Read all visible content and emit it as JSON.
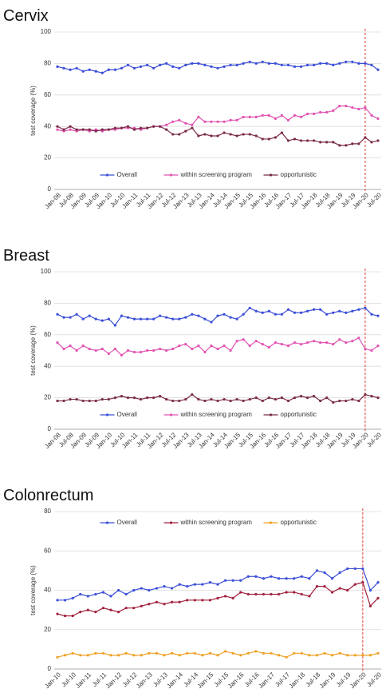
{
  "chart_data": [
    {
      "type": "line",
      "title": "Cervix",
      "y_label": "test coverage (%)",
      "categories": [
        "Jan-08",
        null,
        "Jul-08",
        null,
        "Jan-09",
        null,
        "Jul-09",
        null,
        "Jan-10",
        null,
        "Jul-10",
        null,
        "Jan-11",
        null,
        "Jul-11",
        null,
        "Jan-12",
        null,
        "Jul-12",
        null,
        "Jan-13",
        null,
        "Jul-13",
        null,
        "Jan-14",
        null,
        "Jul-14",
        null,
        "Jan-15",
        null,
        "Jul-15",
        null,
        "Jan-16",
        null,
        "Jul-16",
        null,
        "Jan-17",
        null,
        "Jul-17",
        null,
        "Jan-18",
        null,
        "Jul-18",
        null,
        "Jan-19",
        null,
        "Jul-19",
        null,
        "Jan-20",
        null,
        "Jul-20"
      ],
      "ylim": [
        0,
        100
      ],
      "yticks": [
        0,
        20,
        40,
        60,
        80,
        100
      ],
      "grid": true,
      "legend": "bottom",
      "vline": {
        "at": "Jan-20",
        "color": "#e03a3a"
      },
      "series": [
        {
          "name": "Overall",
          "color": "#3b4fd8",
          "values": [
            78,
            77,
            76,
            77,
            75,
            76,
            75,
            74,
            76,
            76,
            77,
            79,
            77,
            78,
            79,
            77,
            79,
            80,
            78,
            77,
            79,
            80,
            80,
            79,
            78,
            77,
            78,
            79,
            79,
            80,
            81,
            80,
            81,
            80,
            80,
            79,
            79,
            78,
            78,
            79,
            79,
            80,
            80,
            79,
            80,
            81,
            81,
            80,
            80,
            79,
            76
          ]
        },
        {
          "name": "within screening program",
          "color": "#e254b2",
          "values": [
            38,
            37,
            38,
            37,
            38,
            37,
            38,
            37,
            38,
            38,
            39,
            39,
            39,
            38,
            39,
            40,
            40,
            41,
            43,
            44,
            42,
            41,
            46,
            43,
            43,
            43,
            43,
            44,
            44,
            46,
            46,
            46,
            47,
            47,
            45,
            47,
            44,
            47,
            46,
            48,
            48,
            49,
            49,
            50,
            53,
            53,
            52,
            51,
            52,
            47,
            45
          ]
        },
        {
          "name": "opportunistic",
          "color": "#7a2a48",
          "values": [
            40,
            38,
            40,
            38,
            38,
            38,
            37,
            38,
            38,
            39,
            39,
            40,
            38,
            39,
            39,
            40,
            40,
            38,
            35,
            35,
            37,
            39,
            34,
            35,
            34,
            34,
            36,
            35,
            34,
            35,
            35,
            34,
            32,
            32,
            33,
            36,
            31,
            32,
            31,
            31,
            31,
            30,
            30,
            30,
            28,
            28,
            29,
            29,
            33,
            30,
            31
          ]
        }
      ]
    },
    {
      "type": "line",
      "title": "Breast",
      "y_label": "test coverage (%)",
      "categories": [
        "Jan-08",
        null,
        "Jul-08",
        null,
        "Jan-09",
        null,
        "Jul-09",
        null,
        "Jan-10",
        null,
        "Jul-10",
        null,
        "Jan-11",
        null,
        "Jul-11",
        null,
        "Jan-12",
        null,
        "Jul-12",
        null,
        "Jan-13",
        null,
        "Jul-13",
        null,
        "Jan-14",
        null,
        "Jul-14",
        null,
        "Jan-15",
        null,
        "Jul-15",
        null,
        "Jan-16",
        null,
        "Jul-16",
        null,
        "Jan-17",
        null,
        "Jul-17",
        null,
        "Jan-18",
        null,
        "Jul-18",
        null,
        "Jan-19",
        null,
        "Jul-19",
        null,
        "Jan-20",
        null,
        "Jul-20"
      ],
      "ylim": [
        0,
        100
      ],
      "yticks": [
        0,
        20,
        40,
        60,
        80,
        100
      ],
      "grid": true,
      "legend": "bottom",
      "vline": {
        "at": "Jan-20",
        "color": "#e03a3a"
      },
      "series": [
        {
          "name": "Overall",
          "color": "#3b4fd8",
          "values": [
            73,
            71,
            71,
            73,
            70,
            72,
            70,
            69,
            70,
            66,
            72,
            71,
            70,
            70,
            70,
            70,
            72,
            71,
            70,
            70,
            71,
            73,
            72,
            70,
            68,
            72,
            73,
            71,
            70,
            73,
            77,
            75,
            74,
            75,
            73,
            73,
            76,
            74,
            74,
            75,
            76,
            76,
            73,
            74,
            75,
            74,
            75,
            76,
            77,
            73,
            72
          ]
        },
        {
          "name": "within screening program",
          "color": "#e254b2",
          "values": [
            55,
            51,
            53,
            50,
            53,
            51,
            50,
            51,
            48,
            51,
            47,
            50,
            49,
            49,
            50,
            50,
            51,
            50,
            51,
            53,
            54,
            51,
            53,
            49,
            53,
            51,
            53,
            50,
            56,
            57,
            53,
            56,
            54,
            52,
            55,
            54,
            53,
            55,
            54,
            55,
            56,
            55,
            55,
            54,
            57,
            55,
            56,
            58,
            51,
            50,
            53
          ]
        },
        {
          "name": "opportunistic",
          "color": "#7a2a48",
          "values": [
            18,
            18,
            19,
            19,
            18,
            18,
            18,
            19,
            19,
            20,
            21,
            20,
            20,
            19,
            20,
            20,
            21,
            19,
            18,
            18,
            19,
            22,
            19,
            18,
            19,
            18,
            19,
            18,
            19,
            18,
            19,
            20,
            18,
            20,
            19,
            20,
            18,
            20,
            21,
            20,
            21,
            18,
            20,
            17,
            18,
            18,
            19,
            18,
            22,
            21,
            20
          ]
        }
      ]
    },
    {
      "type": "line",
      "title": "Colonrectum",
      "y_label": "test coverage (%)",
      "categories": [
        "Jan-10",
        null,
        "Jul-10",
        null,
        "Jan-11",
        null,
        "Jul-11",
        null,
        "Jan-12",
        null,
        "Jul-12",
        null,
        "Jan-13",
        null,
        "Jul-13",
        null,
        "Jan-14",
        null,
        "Jul-14",
        null,
        "Jan-15",
        null,
        "Jul-15",
        null,
        "Jan-16",
        null,
        "Jul-16",
        null,
        "Jan-17",
        null,
        "Jul-17",
        null,
        "Jan-18",
        null,
        "Jul-18",
        null,
        "Jan-19",
        null,
        "Jul-19",
        null,
        "Jan-20",
        null,
        "Jul-20"
      ],
      "ylim": [
        0,
        80
      ],
      "yticks": [
        0,
        20,
        40,
        60,
        80
      ],
      "grid": true,
      "legend": "top",
      "vline": {
        "at": "Jan-20",
        "color": "#e03a3a"
      },
      "series": [
        {
          "name": "Overall",
          "color": "#3b4fd8",
          "values": [
            35,
            35,
            36,
            38,
            37,
            38,
            39,
            37,
            40,
            38,
            40,
            41,
            40,
            41,
            42,
            41,
            43,
            42,
            43,
            43,
            44,
            43,
            45,
            45,
            45,
            47,
            47,
            46,
            47,
            46,
            46,
            46,
            47,
            46,
            50,
            49,
            46,
            49,
            51,
            51,
            51,
            40,
            44
          ]
        },
        {
          "name": "within screening program",
          "color": "#a3203c",
          "values": [
            28,
            27,
            27,
            29,
            30,
            29,
            31,
            30,
            29,
            31,
            31,
            32,
            33,
            34,
            33,
            34,
            34,
            35,
            35,
            35,
            35,
            36,
            37,
            36,
            39,
            38,
            38,
            38,
            38,
            38,
            39,
            39,
            38,
            37,
            42,
            42,
            39,
            41,
            40,
            43,
            44,
            32,
            36
          ]
        },
        {
          "name": "opportunistic",
          "color": "#f0a024",
          "values": [
            6,
            7,
            8,
            7,
            7,
            8,
            8,
            7,
            7,
            8,
            7,
            7,
            8,
            8,
            7,
            8,
            7,
            8,
            8,
            7,
            8,
            7,
            9,
            8,
            7,
            8,
            9,
            8,
            8,
            7,
            6,
            8,
            8,
            7,
            7,
            8,
            7,
            8,
            7,
            7,
            7,
            7,
            8
          ]
        }
      ]
    }
  ]
}
